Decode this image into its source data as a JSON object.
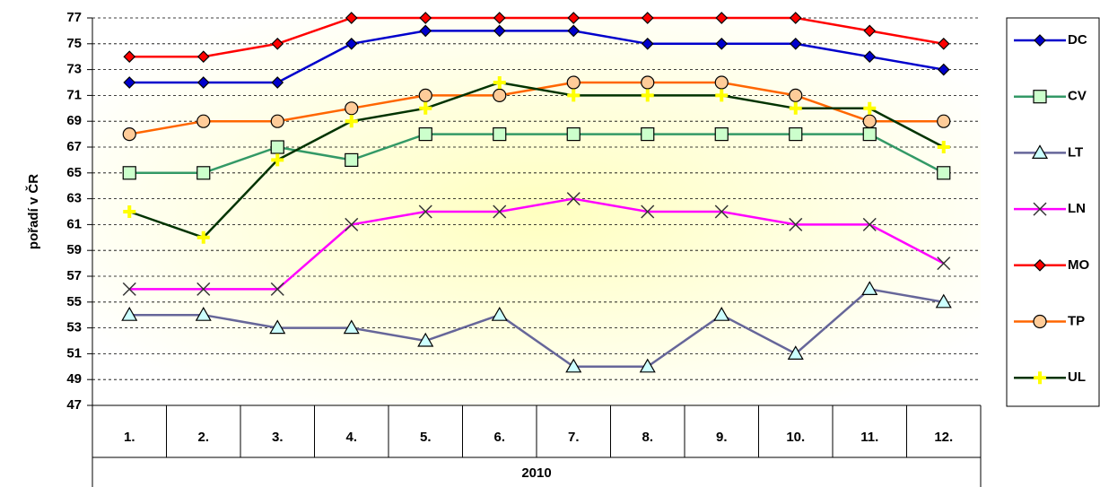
{
  "chart_data": {
    "type": "line",
    "y_label": "pořadí v ČR",
    "x_group_label": "2010",
    "categories": [
      "1.",
      "2.",
      "3.",
      "4.",
      "5.",
      "6.",
      "7.",
      "8.",
      "9.",
      "10.",
      "11.",
      "12."
    ],
    "ylim": [
      47,
      77
    ],
    "yticks": [
      47,
      49,
      51,
      53,
      55,
      57,
      59,
      61,
      63,
      65,
      67,
      69,
      71,
      73,
      75,
      77
    ],
    "grid": true,
    "legend": "right",
    "series": [
      {
        "name": "DC",
        "color": "#0000cc",
        "marker": "diamond",
        "marker_fill": "#0000cc",
        "values": [
          72,
          72,
          72,
          75,
          76,
          76,
          76,
          75,
          75,
          75,
          74,
          73
        ]
      },
      {
        "name": "CV",
        "color": "#339966",
        "marker": "square",
        "marker_fill": "#ccffcc",
        "values": [
          65,
          65,
          67,
          66,
          68,
          68,
          68,
          68,
          68,
          68,
          68,
          65
        ]
      },
      {
        "name": "LT",
        "color": "#666699",
        "marker": "triangle",
        "marker_fill": "#ccffff",
        "values": [
          54,
          54,
          53,
          53,
          52,
          54,
          50,
          50,
          54,
          51,
          56,
          55
        ]
      },
      {
        "name": "LN",
        "color": "#ff00ff",
        "marker": "x",
        "marker_fill": "#333333",
        "values": [
          56,
          56,
          56,
          61,
          62,
          62,
          63,
          62,
          62,
          61,
          61,
          58
        ]
      },
      {
        "name": "MO",
        "color": "#ff0000",
        "marker": "diamond",
        "marker_fill": "#ff0000",
        "values": [
          74,
          74,
          75,
          77,
          77,
          77,
          77,
          77,
          77,
          77,
          76,
          75
        ]
      },
      {
        "name": "TP",
        "color": "#ff6600",
        "marker": "circle",
        "marker_fill": "#ffcc99",
        "values": [
          68,
          69,
          69,
          70,
          71,
          71,
          72,
          72,
          72,
          71,
          69,
          69
        ]
      },
      {
        "name": "UL",
        "color": "#003300",
        "marker": "plus",
        "marker_fill": "#ffff00",
        "values": [
          62,
          60,
          66,
          69,
          70,
          72,
          71,
          71,
          71,
          70,
          70,
          67
        ]
      }
    ]
  }
}
